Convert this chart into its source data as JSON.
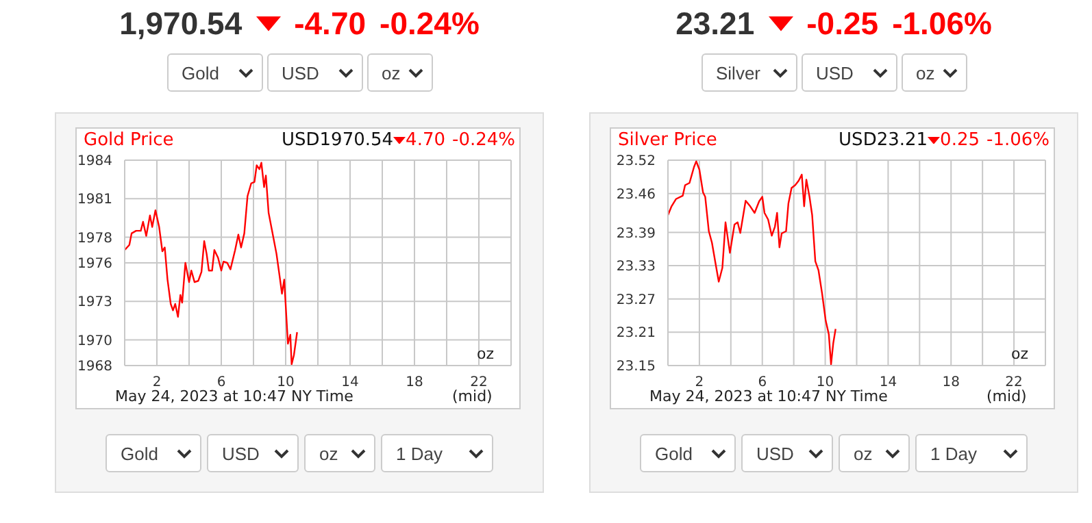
{
  "chart_data": [
    {
      "type": "line",
      "title": "Gold Price",
      "annotations": [
        "1,970.54",
        "-4.70",
        "-0.24%",
        "Gold",
        "USD",
        "oz",
        "USD1970.54",
        "4.70",
        "-0.24%",
        "oz",
        "May 24, 2023 at 10:47 NY Time",
        "(mid)",
        "Gold",
        "USD",
        "oz",
        "1 Day"
      ],
      "x": [
        0,
        0.29,
        0.43,
        0.71,
        1.0,
        1.14,
        1.34,
        1.57,
        1.71,
        1.91,
        2.14,
        2.34,
        2.49,
        2.66,
        2.86,
        3.0,
        3.14,
        3.31,
        3.46,
        3.57,
        3.77,
        4.0,
        4.14,
        4.34,
        4.57,
        4.77,
        4.94,
        5.09,
        5.23,
        5.43,
        5.57,
        5.8,
        6.0,
        6.14,
        6.37,
        6.57,
        6.86,
        7.06,
        7.23,
        7.43,
        7.63,
        7.86,
        8.06,
        8.2,
        8.37,
        8.49,
        8.66,
        8.77,
        8.94,
        9.14,
        9.43,
        9.63,
        9.77,
        9.91,
        10.14,
        10.29,
        10.37,
        10.51,
        10.71
      ],
      "series": [
        {
          "color": "#ff0000",
          "values": [
            1977.0,
            1977.4,
            1978.3,
            1978.5,
            1978.5,
            1979.2,
            1978.1,
            1979.7,
            1978.8,
            1980.1,
            1978.8,
            1976.9,
            1977.2,
            1974.7,
            1972.8,
            1972.3,
            1972.8,
            1971.8,
            1973.5,
            1972.9,
            1976.0,
            1974.5,
            1975.4,
            1974.5,
            1974.6,
            1975.3,
            1977.7,
            1976.7,
            1975.4,
            1975.4,
            1977.0,
            1976.4,
            1975.4,
            1976.1,
            1976.0,
            1975.5,
            1977.0,
            1978.2,
            1977.2,
            1978.3,
            1981.2,
            1982.2,
            1982.3,
            1983.6,
            1983.3,
            1983.8,
            1981.9,
            1982.8,
            1979.9,
            1978.6,
            1976.7,
            1974.9,
            1973.6,
            1974.7,
            1969.7,
            1970.4,
            1968.1,
            1968.8,
            1970.6
          ]
        }
      ],
      "xlim": [
        0,
        24
      ],
      "xticks": [
        {
          "value": 0,
          "label": null
        },
        2,
        {
          "value": 4,
          "label": null
        },
        6,
        {
          "value": 8,
          "label": null
        },
        10,
        {
          "value": 12,
          "label": null
        },
        14,
        {
          "value": 16,
          "label": null
        },
        18,
        {
          "value": 20,
          "label": null
        },
        22,
        {
          "value": 24,
          "label": null
        }
      ],
      "ylim": [
        1968,
        1984
      ],
      "yticks": [
        1968,
        1970,
        1973,
        1976,
        1978,
        1981,
        1984
      ],
      "grid": true,
      "marker": "none",
      "line_style": "solid"
    },
    {
      "type": "line",
      "title": "Silver Price",
      "annotations": [
        "23.21",
        "-0.25",
        "-1.06%",
        "Silver",
        "USD",
        "oz",
        "USD23.21",
        "0.25",
        "-1.06%",
        "oz",
        "May 24, 2023 at 10:47 NY Time",
        "(mid)",
        "Gold",
        "USD",
        "oz",
        "1 Day"
      ],
      "x": [
        0,
        0.23,
        0.51,
        0.94,
        1.09,
        1.37,
        1.66,
        1.8,
        2.0,
        2.23,
        2.37,
        2.6,
        2.8,
        3.0,
        3.23,
        3.46,
        3.66,
        3.94,
        4.23,
        4.43,
        4.6,
        4.94,
        5.23,
        5.51,
        5.8,
        6.0,
        6.14,
        6.37,
        6.6,
        6.8,
        6.94,
        7.09,
        7.23,
        7.51,
        7.66,
        7.86,
        8.09,
        8.31,
        8.51,
        8.66,
        8.8,
        9.0,
        9.17,
        9.37,
        9.57,
        9.8,
        10.03,
        10.23,
        10.37,
        10.51,
        10.66
      ],
      "series": [
        {
          "color": "#ff0000",
          "values": [
            23.421,
            23.437,
            23.45,
            23.456,
            23.475,
            23.479,
            23.508,
            23.518,
            23.503,
            23.462,
            23.454,
            23.392,
            23.371,
            23.338,
            23.301,
            23.326,
            23.408,
            23.353,
            23.404,
            23.408,
            23.389,
            23.447,
            23.437,
            23.425,
            23.446,
            23.454,
            23.425,
            23.413,
            23.384,
            23.4,
            23.425,
            23.363,
            23.388,
            23.392,
            23.442,
            23.47,
            23.475,
            23.483,
            23.494,
            23.437,
            23.485,
            23.454,
            23.421,
            23.338,
            23.322,
            23.28,
            23.231,
            23.206,
            23.152,
            23.19,
            23.216
          ]
        }
      ],
      "xlim": [
        0,
        24
      ],
      "xticks": [
        {
          "value": 0,
          "label": null
        },
        2,
        {
          "value": 4,
          "label": null
        },
        6,
        {
          "value": 8,
          "label": null
        },
        10,
        {
          "value": 12,
          "label": null
        },
        14,
        {
          "value": 16,
          "label": null
        },
        18,
        {
          "value": 20,
          "label": null
        },
        22,
        {
          "value": 24,
          "label": null
        }
      ],
      "ylim": [
        23.15,
        23.52
      ],
      "yticks": [
        23.15,
        23.21,
        23.27,
        23.33,
        23.39,
        23.46,
        23.52
      ],
      "grid": true,
      "marker": "none",
      "line_style": "solid"
    }
  ]
}
